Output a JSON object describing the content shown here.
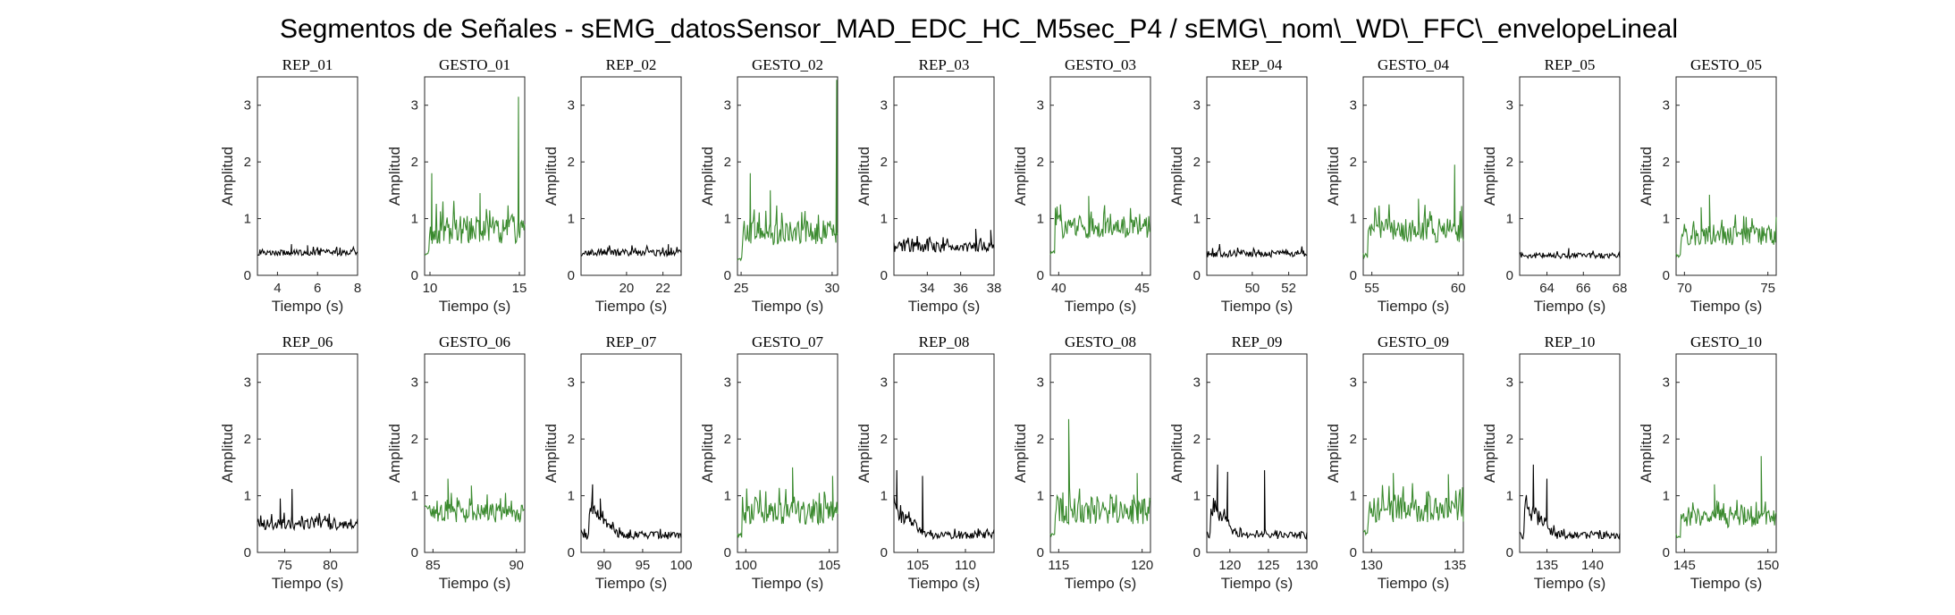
{
  "title": "Segmentos de Señales - sEMG_datosSensor_MAD_EDC_HC_M5sec_P4 / sEMG\\_nom\\_WD\\_FFC\\_envelopeLineal",
  "colors": {
    "rep": "#000000",
    "gesto": "#3a8a2e",
    "axis": "#262626"
  },
  "chart_data": [
    {
      "type": "line",
      "title": "REP_01",
      "series_color": "rep",
      "xlabel": "Tiempo (s)",
      "ylabel": "Amplitud",
      "xlim": [
        3,
        8
      ],
      "ylim": [
        0,
        3.5
      ],
      "xticks": [
        4,
        6,
        8
      ],
      "yticks": [
        0,
        1,
        2,
        3
      ],
      "base": 0.4,
      "noise": 0.05,
      "spikes": [
        [
          4.7,
          0.55
        ],
        [
          5.5,
          0.53
        ]
      ]
    },
    {
      "type": "line",
      "title": "GESTO_01",
      "series_color": "gesto",
      "xlabel": "Tiempo (s)",
      "ylabel": "Amplitud",
      "xlim": [
        9.7,
        15.3
      ],
      "ylim": [
        0,
        3.5
      ],
      "xticks": [
        10,
        15
      ],
      "yticks": [
        0,
        1,
        2,
        3
      ],
      "base": 0.8,
      "noise": 0.25,
      "spikes": [
        [
          10.1,
          1.8
        ],
        [
          12.8,
          1.45
        ],
        [
          14.95,
          3.15
        ]
      ],
      "start": 0.4
    },
    {
      "type": "line",
      "title": "REP_02",
      "series_color": "rep",
      "xlabel": "Tiempo (s)",
      "ylabel": "Amplitud",
      "xlim": [
        17.5,
        23
      ],
      "ylim": [
        0,
        3.5
      ],
      "xticks": [
        20,
        22
      ],
      "yticks": [
        0,
        1,
        2,
        3
      ],
      "base": 0.4,
      "noise": 0.06,
      "spikes": [
        [
          22.3,
          0.55
        ]
      ]
    },
    {
      "type": "line",
      "title": "GESTO_02",
      "series_color": "gesto",
      "xlabel": "Tiempo (s)",
      "ylabel": "Amplitud",
      "xlim": [
        24.8,
        30.3
      ],
      "ylim": [
        0,
        3.5
      ],
      "xticks": [
        25,
        30
      ],
      "yticks": [
        0,
        1,
        2,
        3
      ],
      "base": 0.75,
      "noise": 0.22,
      "spikes": [
        [
          25.5,
          1.8
        ],
        [
          26.6,
          1.5
        ],
        [
          30.25,
          3.45
        ]
      ],
      "start": 0.3
    },
    {
      "type": "line",
      "title": "REP_03",
      "series_color": "rep",
      "xlabel": "Tiempo (s)",
      "ylabel": "Amplitud",
      "xlim": [
        32,
        38
      ],
      "ylim": [
        0,
        3.5
      ],
      "xticks": [
        34,
        36,
        38
      ],
      "yticks": [
        0,
        1,
        2,
        3
      ],
      "base": 0.5,
      "noise": 0.09,
      "spikes": [
        [
          36.9,
          0.82
        ],
        [
          37.8,
          0.8
        ]
      ]
    },
    {
      "type": "line",
      "title": "GESTO_03",
      "series_color": "gesto",
      "xlabel": "Tiempo (s)",
      "ylabel": "Amplitud",
      "xlim": [
        39.5,
        45.5
      ],
      "ylim": [
        0,
        3.5
      ],
      "xticks": [
        40,
        45
      ],
      "yticks": [
        0,
        1,
        2,
        3
      ],
      "base": 0.85,
      "noise": 0.2,
      "spikes": [
        [
          41.8,
          1.4
        ],
        [
          40.1,
          1.25
        ]
      ],
      "start": 0.4
    },
    {
      "type": "line",
      "title": "REP_04",
      "series_color": "rep",
      "xlabel": "Tiempo (s)",
      "ylabel": "Amplitud",
      "xlim": [
        47.5,
        53
      ],
      "ylim": [
        0,
        3.5
      ],
      "xticks": [
        50,
        52
      ],
      "yticks": [
        0,
        1,
        2,
        3
      ],
      "base": 0.38,
      "noise": 0.06,
      "spikes": [
        [
          48.2,
          0.55
        ]
      ]
    },
    {
      "type": "line",
      "title": "GESTO_04",
      "series_color": "gesto",
      "xlabel": "Tiempo (s)",
      "ylabel": "Amplitud",
      "xlim": [
        54.5,
        60.3
      ],
      "ylim": [
        0,
        3.5
      ],
      "xticks": [
        55,
        60
      ],
      "yticks": [
        0,
        1,
        2,
        3
      ],
      "base": 0.8,
      "noise": 0.22,
      "spikes": [
        [
          59.8,
          1.95
        ],
        [
          57.7,
          1.35
        ]
      ],
      "start": 0.35
    },
    {
      "type": "line",
      "title": "REP_05",
      "series_color": "rep",
      "xlabel": "Tiempo (s)",
      "ylabel": "Amplitud",
      "xlim": [
        62.5,
        68
      ],
      "ylim": [
        0,
        3.5
      ],
      "xticks": [
        64,
        66,
        68
      ],
      "yticks": [
        0,
        1,
        2,
        3
      ],
      "base": 0.35,
      "noise": 0.05,
      "spikes": [
        [
          65.2,
          0.48
        ]
      ]
    },
    {
      "type": "line",
      "title": "GESTO_05",
      "series_color": "gesto",
      "xlabel": "Tiempo (s)",
      "ylabel": "Amplitud",
      "xlim": [
        69.5,
        75.5
      ],
      "ylim": [
        0,
        3.5
      ],
      "xticks": [
        70,
        75
      ],
      "yticks": [
        0,
        1,
        2,
        3
      ],
      "base": 0.7,
      "noise": 0.17,
      "spikes": [
        [
          71.5,
          1.42
        ],
        [
          71.0,
          1.2
        ]
      ],
      "start": 0.35
    },
    {
      "type": "line",
      "title": "REP_06",
      "series_color": "rep",
      "xlabel": "Tiempo (s)",
      "ylabel": "Amplitud",
      "xlim": [
        72,
        83
      ],
      "ylim": [
        0,
        3.5
      ],
      "xticks": [
        75,
        80
      ],
      "yticks": [
        0,
        1,
        2,
        3
      ],
      "base": 0.5,
      "noise": 0.1,
      "spikes": [
        [
          75.8,
          1.12
        ],
        [
          74.5,
          0.95
        ]
      ]
    },
    {
      "type": "line",
      "title": "GESTO_06",
      "series_color": "gesto",
      "xlabel": "Tiempo (s)",
      "ylabel": "Amplitud",
      "xlim": [
        84.5,
        90.5
      ],
      "ylim": [
        0,
        3.5
      ],
      "xticks": [
        85,
        90
      ],
      "yticks": [
        0,
        1,
        2,
        3
      ],
      "base": 0.7,
      "noise": 0.17,
      "spikes": [
        [
          85.9,
          1.3
        ],
        [
          87.3,
          1.18
        ]
      ],
      "start": 0.8
    },
    {
      "type": "line",
      "title": "REP_07",
      "series_color": "rep",
      "xlabel": "Tiempo (s)",
      "ylabel": "Amplitud",
      "xlim": [
        87,
        100
      ],
      "ylim": [
        0,
        3.5
      ],
      "xticks": [
        90,
        95,
        100
      ],
      "yticks": [
        0,
        1,
        2,
        3
      ],
      "base": 0.3,
      "noise": 0.07,
      "spikes": [
        [
          88.5,
          1.2
        ],
        [
          89.5,
          0.95
        ]
      ],
      "decay": [
        88,
        0.6,
        92
      ]
    },
    {
      "type": "line",
      "title": "GESTO_07",
      "series_color": "gesto",
      "xlabel": "Tiempo (s)",
      "ylabel": "Amplitud",
      "xlim": [
        99.5,
        105.5
      ],
      "ylim": [
        0,
        3.5
      ],
      "xticks": [
        100,
        105
      ],
      "yticks": [
        0,
        1,
        2,
        3
      ],
      "base": 0.7,
      "noise": 0.2,
      "spikes": [
        [
          102.8,
          1.5
        ],
        [
          105.2,
          1.35
        ]
      ],
      "start": 0.3
    },
    {
      "type": "line",
      "title": "REP_08",
      "series_color": "rep",
      "xlabel": "Tiempo (s)",
      "ylabel": "Amplitud",
      "xlim": [
        102.5,
        113
      ],
      "ylim": [
        0,
        3.5
      ],
      "xticks": [
        105,
        110
      ],
      "yticks": [
        0,
        1,
        2,
        3
      ],
      "base": 0.3,
      "noise": 0.06,
      "spikes": [
        [
          102.8,
          1.45
        ],
        [
          105.5,
          1.35
        ]
      ],
      "decay": [
        102.5,
        0.55,
        106
      ]
    },
    {
      "type": "line",
      "title": "GESTO_08",
      "series_color": "gesto",
      "xlabel": "Tiempo (s)",
      "ylabel": "Amplitud",
      "xlim": [
        114.5,
        120.5
      ],
      "ylim": [
        0,
        3.5
      ],
      "xticks": [
        115,
        120
      ],
      "yticks": [
        0,
        1,
        2,
        3
      ],
      "base": 0.75,
      "noise": 0.25,
      "spikes": [
        [
          115.6,
          2.35
        ],
        [
          119.7,
          1.4
        ]
      ],
      "start": 0.3
    },
    {
      "type": "line",
      "title": "REP_09",
      "series_color": "rep",
      "xlabel": "Tiempo (s)",
      "ylabel": "Amplitud",
      "xlim": [
        117,
        130
      ],
      "ylim": [
        0,
        3.5
      ],
      "xticks": [
        120,
        125,
        130
      ],
      "yticks": [
        0,
        1,
        2,
        3
      ],
      "base": 0.3,
      "noise": 0.06,
      "spikes": [
        [
          118.4,
          1.55
        ],
        [
          119.7,
          1.42
        ],
        [
          124.5,
          1.45
        ]
      ],
      "decay": [
        117.5,
        0.6,
        121
      ]
    },
    {
      "type": "line",
      "title": "GESTO_09",
      "series_color": "gesto",
      "xlabel": "Tiempo (s)",
      "ylabel": "Amplitud",
      "xlim": [
        129.5,
        135.5
      ],
      "ylim": [
        0,
        3.5
      ],
      "xticks": [
        130,
        135
      ],
      "yticks": [
        0,
        1,
        2,
        3
      ],
      "base": 0.75,
      "noise": 0.22,
      "spikes": [
        [
          131.3,
          1.4
        ],
        [
          134.6,
          1.38
        ]
      ],
      "start": 0.35
    },
    {
      "type": "line",
      "title": "REP_10",
      "series_color": "rep",
      "xlabel": "Tiempo (s)",
      "ylabel": "Amplitud",
      "xlim": [
        132,
        143
      ],
      "ylim": [
        0,
        3.5
      ],
      "xticks": [
        135,
        140
      ],
      "yticks": [
        0,
        1,
        2,
        3
      ],
      "base": 0.3,
      "noise": 0.06,
      "spikes": [
        [
          133.5,
          1.55
        ],
        [
          135,
          1.3
        ]
      ],
      "decay": [
        132.5,
        0.6,
        136
      ]
    },
    {
      "type": "line",
      "title": "GESTO_10",
      "series_color": "gesto",
      "xlabel": "Tiempo (s)",
      "ylabel": "Amplitud",
      "xlim": [
        144.5,
        150.5
      ],
      "ylim": [
        0,
        3.5
      ],
      "xticks": [
        145,
        150
      ],
      "yticks": [
        0,
        1,
        2,
        3
      ],
      "base": 0.6,
      "noise": 0.16,
      "spikes": [
        [
          149.6,
          1.7
        ],
        [
          146.8,
          1.2
        ]
      ],
      "start": 0.3
    }
  ]
}
